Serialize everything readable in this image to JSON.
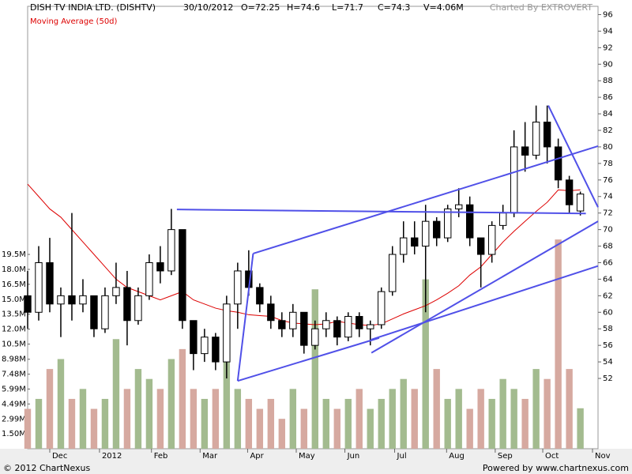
{
  "chart_data": {
    "type": "candlestick",
    "title": "DISH TV INDIA LTD. (DISHTV)",
    "date": "30/10/2012",
    "quote": [
      "O=72.25",
      "H=74.6",
      "L=71.7",
      "C=74.3",
      "V=4.06M"
    ],
    "credit": "Charted By EXTROVERT",
    "indicator": {
      "name": "Moving Average (50d)",
      "color": "#dd0000"
    },
    "footer_left": "© 2012 ChartNexus",
    "footer_right": "Powered by www.chartnexus.com",
    "x": [
      0,
      1,
      2,
      3,
      4,
      5,
      6,
      7,
      8,
      9,
      10,
      11,
      12,
      13,
      14,
      15,
      16,
      17,
      18,
      19,
      20,
      21,
      22,
      23,
      24,
      25,
      26,
      27,
      28,
      29,
      30,
      31,
      32,
      33,
      34,
      35,
      36,
      37,
      38,
      39,
      40,
      41,
      42,
      43,
      44,
      45,
      46,
      47,
      48,
      49,
      50
    ],
    "open": [
      62,
      60,
      66,
      61,
      62,
      61,
      62,
      58,
      62,
      63,
      59,
      62,
      66,
      65,
      70,
      59,
      55,
      57,
      54,
      61,
      65,
      63,
      61,
      59,
      58,
      60,
      56,
      58,
      59,
      57,
      59.5,
      58,
      58.5,
      62.5,
      67,
      69,
      68,
      71,
      69,
      72.5,
      73,
      69,
      67,
      70.5,
      72,
      80,
      79,
      83,
      80,
      76,
      72.25
    ],
    "high": [
      65,
      68,
      69,
      63,
      72,
      64,
      62,
      63,
      66,
      65,
      63,
      67,
      68,
      72.5,
      70,
      59,
      58,
      57.5,
      62,
      66,
      67.5,
      63.5,
      62,
      60,
      61,
      60,
      59,
      60,
      59.5,
      60,
      60,
      59,
      63,
      68,
      71,
      71,
      73,
      71.5,
      73,
      75,
      74,
      69,
      71,
      73,
      82,
      83,
      85,
      85,
      81,
      76.5,
      74.6
    ],
    "low": [
      58,
      59,
      60,
      57,
      59,
      60,
      57,
      57.5,
      61,
      56,
      58.5,
      61.5,
      63.5,
      64.5,
      58,
      53,
      54,
      53,
      52,
      58,
      62,
      60,
      58,
      57,
      57,
      55,
      55.5,
      57,
      56,
      56.5,
      57,
      56,
      58,
      62,
      66,
      67,
      60,
      68,
      68.5,
      71.5,
      68,
      63,
      66,
      70,
      71.5,
      77,
      78.5,
      78,
      75,
      72,
      71.7
    ],
    "close": [
      60,
      66,
      61,
      62,
      61,
      62,
      58,
      62,
      63,
      59,
      62,
      66,
      65,
      70,
      59,
      55,
      57,
      54,
      61,
      65,
      63,
      61,
      59,
      58,
      60,
      56,
      58,
      59,
      57,
      59.5,
      58,
      58.5,
      62.5,
      67,
      69,
      68,
      71,
      69,
      72.5,
      73,
      69,
      67,
      70.5,
      72,
      80,
      79,
      83,
      80,
      76,
      73,
      74.3
    ],
    "volume": [
      4,
      5,
      8,
      9,
      5,
      6,
      4,
      5,
      11,
      6,
      8,
      7,
      6,
      9,
      10,
      6,
      5,
      6,
      9,
      6,
      5,
      4,
      5,
      3,
      6,
      4,
      16,
      5,
      4,
      5,
      6,
      4,
      5,
      6,
      7,
      6,
      17,
      8,
      5,
      6,
      4,
      6,
      5,
      7,
      6,
      5,
      8,
      7,
      21,
      8,
      4.06
    ],
    "ma": [
      75.5,
      74,
      72.5,
      71.5,
      70,
      68.5,
      67,
      65.5,
      64,
      63,
      62.5,
      62,
      61.5,
      62,
      62.5,
      61.5,
      61,
      60.5,
      60.2,
      60,
      59.7,
      59.6,
      59.5,
      59,
      58.7,
      58.6,
      58.5,
      58.6,
      58.9,
      58.7,
      58.5,
      58.4,
      58.6,
      59.2,
      59.8,
      60.3,
      60.8,
      61.5,
      62.3,
      63.2,
      64.5,
      65.5,
      67,
      68.5,
      69.8,
      71,
      72.2,
      73.3,
      74.8,
      74.7,
      74.8
    ],
    "up_color": "#ffffff",
    "down_color": "#000000",
    "volume_up_color": "#a3bb8f",
    "volume_down_color": "#d6a9a0",
    "trendline_color": "#5050e8",
    "trendlines": [
      {
        "x": [
          13.5,
          50.5
        ],
        "y": [
          72.43,
          71.95
        ]
      },
      {
        "x": [
          19.0,
          31.8
        ],
        "y": [
          51.7,
          56.9
        ]
      },
      {
        "x": [
          19.0,
          20.4
        ],
        "y": [
          51.7,
          67.1
        ]
      },
      {
        "x": [
          20.4,
          51.6
        ],
        "y": [
          67.1,
          80.1
        ]
      },
      {
        "x": [
          31.1,
          51.6
        ],
        "y": [
          55.1,
          71.0
        ]
      },
      {
        "x": [
          31.1,
          51.6
        ],
        "y": [
          56.7,
          65.6
        ]
      },
      {
        "x": [
          47.1,
          51.6
        ],
        "y": [
          85.0,
          72.7
        ]
      }
    ],
    "xlim": [
      0,
      51.6
    ],
    "xticks": [
      {
        "value": 2.0,
        "label": "Dec"
      },
      {
        "value": 6.5,
        "label": "2012"
      },
      {
        "value": 11.2,
        "label": "Feb"
      },
      {
        "value": 15.6,
        "label": "Mar"
      },
      {
        "value": 19.9,
        "label": "Apr"
      },
      {
        "value": 24.3,
        "label": "May"
      },
      {
        "value": 28.7,
        "label": "Jun"
      },
      {
        "value": 33.2,
        "label": "Jul"
      },
      {
        "value": 37.9,
        "label": "Aug"
      },
      {
        "value": 42.3,
        "label": "Sep"
      },
      {
        "value": 46.6,
        "label": "Oct"
      },
      {
        "value": 51.1,
        "label": "Nov"
      }
    ],
    "ylim": [
      43.5,
      97
    ],
    "yticks": [
      52,
      54,
      56,
      58,
      60,
      62,
      64,
      66,
      68,
      70,
      72,
      74,
      76,
      78,
      80,
      82,
      84,
      86,
      88,
      90,
      92,
      94,
      96
    ],
    "y2lim": [
      0,
      44.4
    ],
    "y2ticks": [
      {
        "value": 1.5,
        "label": "1.50M"
      },
      {
        "value": 2.99,
        "label": "2.99M"
      },
      {
        "value": 4.49,
        "label": "4.49M"
      },
      {
        "value": 5.99,
        "label": "5.99M"
      },
      {
        "value": 7.48,
        "label": "7.48M"
      },
      {
        "value": 8.98,
        "label": "8.98M"
      },
      {
        "value": 10.5,
        "label": "10.5M"
      },
      {
        "value": 12.0,
        "label": "12.0M"
      },
      {
        "value": 13.5,
        "label": "13.5M"
      },
      {
        "value": 15.0,
        "label": "15.0M"
      },
      {
        "value": 16.5,
        "label": "16.5M"
      },
      {
        "value": 18.0,
        "label": "18.0M"
      },
      {
        "value": 19.5,
        "label": "19.5M"
      }
    ]
  }
}
